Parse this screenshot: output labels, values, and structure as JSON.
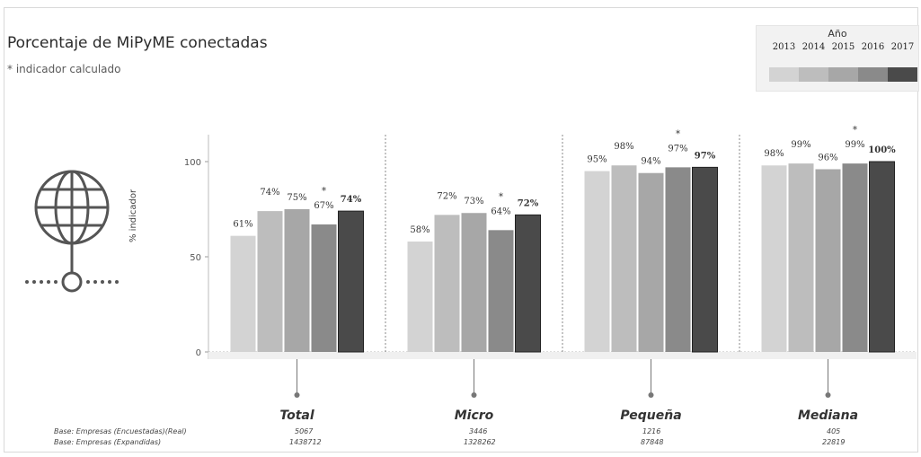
{
  "title": "Porcentaje de MiPyME conectadas",
  "subtitle": "* indicador calculado",
  "legend": {
    "title": "Año",
    "years": [
      "2013",
      "2014",
      "2015",
      "2016",
      "2017"
    ],
    "colors": [
      "#d3d3d3",
      "#bdbdbd",
      "#a7a7a7",
      "#8a8a8a",
      "#4a4a4a"
    ]
  },
  "icon": "globe-network-icon",
  "chart_data": {
    "type": "bar",
    "ylabel": "% indicador",
    "ylim": [
      0,
      100
    ],
    "yticks": [
      0,
      50,
      100
    ],
    "groups": [
      {
        "name": "Total",
        "values": [
          61,
          74,
          75,
          67,
          74
        ],
        "labels": [
          "61%",
          "74%",
          "75%",
          "67%",
          "74%"
        ],
        "star_index": 3
      },
      {
        "name": "Micro",
        "values": [
          58,
          72,
          73,
          64,
          72
        ],
        "labels": [
          "58%",
          "72%",
          "73%",
          "64%",
          "72%"
        ],
        "star_index": 3
      },
      {
        "name": "Pequeña",
        "values": [
          95,
          98,
          94,
          97,
          97
        ],
        "labels": [
          "95%",
          "98%",
          "94%",
          "97%",
          "97%"
        ],
        "star_index": 3
      },
      {
        "name": "Mediana",
        "values": [
          98,
          99,
          96,
          99,
          100
        ],
        "labels": [
          "98%",
          "99%",
          "96%",
          "99%",
          "100%"
        ],
        "star_index": 3
      }
    ],
    "series_years": [
      "2013",
      "2014",
      "2015",
      "2016",
      "2017"
    ]
  },
  "footer": {
    "row1_label": "Base: Empresas (Encuestadas)(Real)",
    "row2_label": "Base: Empresas (Expandidas)",
    "row1_values": [
      "5067",
      "3446",
      "1216",
      "405"
    ],
    "row2_values": [
      "1438712",
      "1328262",
      "87848",
      "22819"
    ]
  }
}
